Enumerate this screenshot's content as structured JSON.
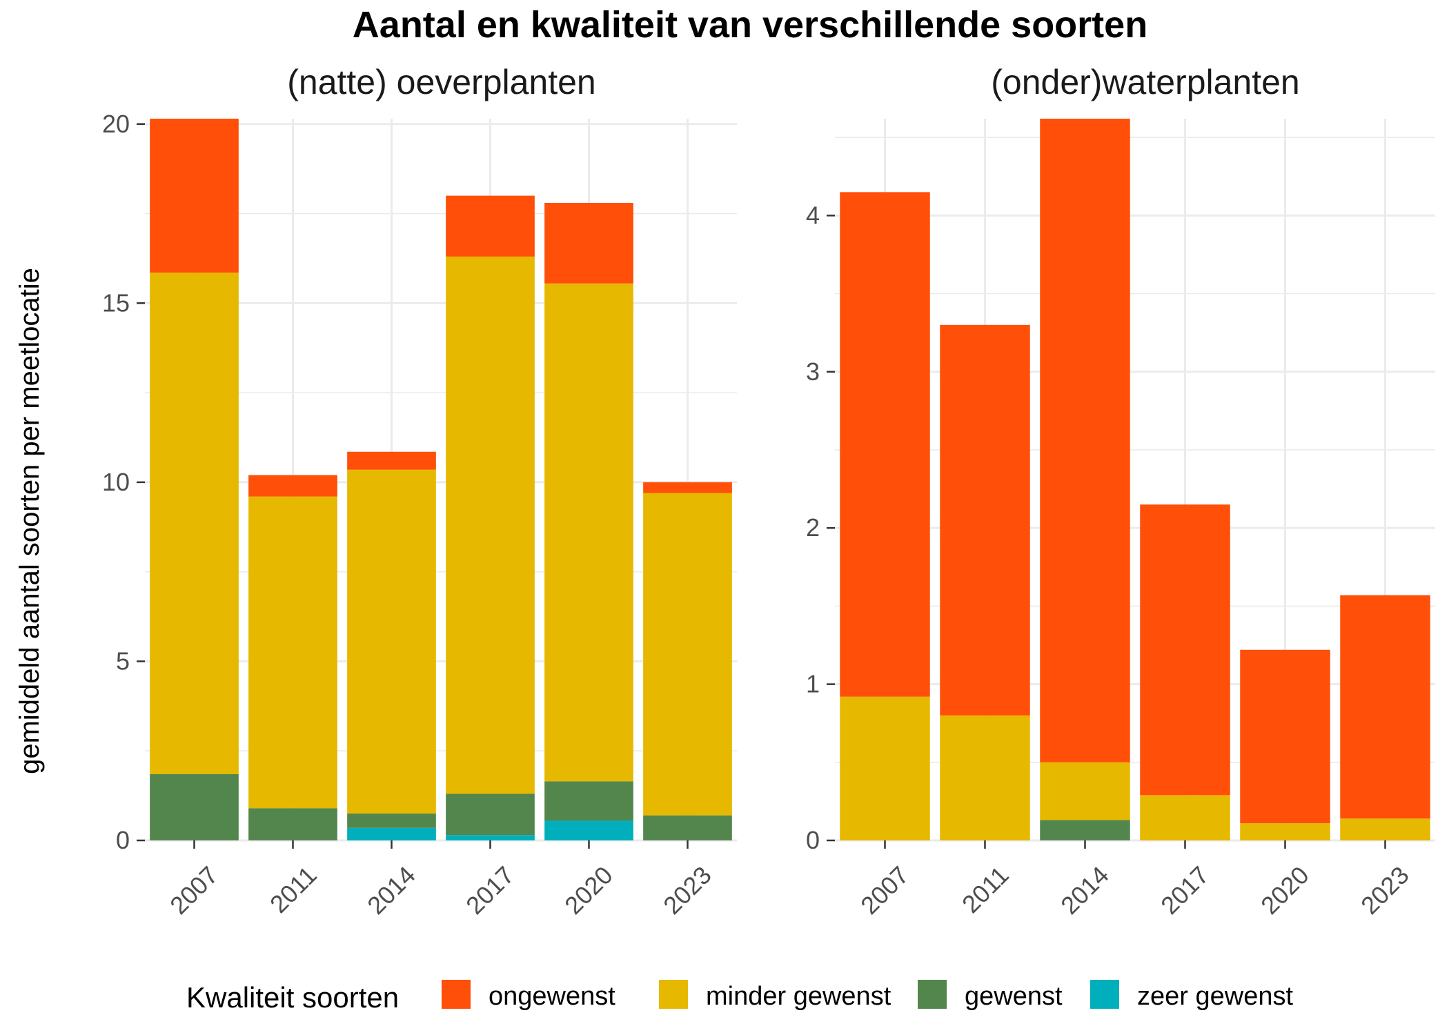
{
  "title": "Aantal en kwaliteit van verschillende soorten",
  "ylabel": "gemiddeld aantal soorten per meetlocatie",
  "legend": {
    "title": "Kwaliteit soorten",
    "placement": "bottom",
    "items": [
      {
        "key": "ongewenst",
        "label": "ongewenst",
        "color": "#FF4F08"
      },
      {
        "key": "minder_gewenst",
        "label": "minder gewenst",
        "color": "#E6B800"
      },
      {
        "key": "gewenst",
        "label": "gewenst",
        "color": "#52864D"
      },
      {
        "key": "zeer_gewenst",
        "label": "zeer gewenst",
        "color": "#00AFBB"
      }
    ]
  },
  "chart_data": [
    {
      "type": "bar",
      "stacked": true,
      "subtitle": "(natte) oeverplanten",
      "categories": [
        "2007",
        "2011",
        "2014",
        "2017",
        "2020",
        "2023"
      ],
      "ylim": [
        0,
        20.15
      ],
      "yticks": [
        0,
        5,
        10,
        15,
        20
      ],
      "series": [
        {
          "key": "zeer_gewenst",
          "values": [
            0,
            0,
            0.35,
            0.15,
            0.55,
            0
          ]
        },
        {
          "key": "gewenst",
          "values": [
            1.85,
            0.9,
            0.4,
            1.15,
            1.1,
            0.7
          ]
        },
        {
          "key": "minder_gewenst",
          "values": [
            14.0,
            8.7,
            9.6,
            15.0,
            13.9,
            9.0
          ]
        },
        {
          "key": "ongewenst",
          "values": [
            4.3,
            0.6,
            0.5,
            1.7,
            2.25,
            0.3
          ]
        }
      ]
    },
    {
      "type": "bar",
      "stacked": true,
      "subtitle": "(onder)waterplanten",
      "categories": [
        "2007",
        "2011",
        "2014",
        "2017",
        "2020",
        "2023"
      ],
      "ylim": [
        0,
        4.62
      ],
      "yticks": [
        0,
        1,
        2,
        3,
        4
      ],
      "series": [
        {
          "key": "zeer_gewenst",
          "values": [
            0,
            0,
            0,
            0,
            0,
            0
          ]
        },
        {
          "key": "gewenst",
          "values": [
            0,
            0,
            0.13,
            0,
            0,
            0
          ]
        },
        {
          "key": "minder_gewenst",
          "values": [
            0.92,
            0.8,
            0.37,
            0.29,
            0.11,
            0.14
          ]
        },
        {
          "key": "ongewenst",
          "values": [
            3.23,
            2.5,
            4.12,
            1.86,
            1.11,
            1.43
          ]
        }
      ]
    }
  ]
}
